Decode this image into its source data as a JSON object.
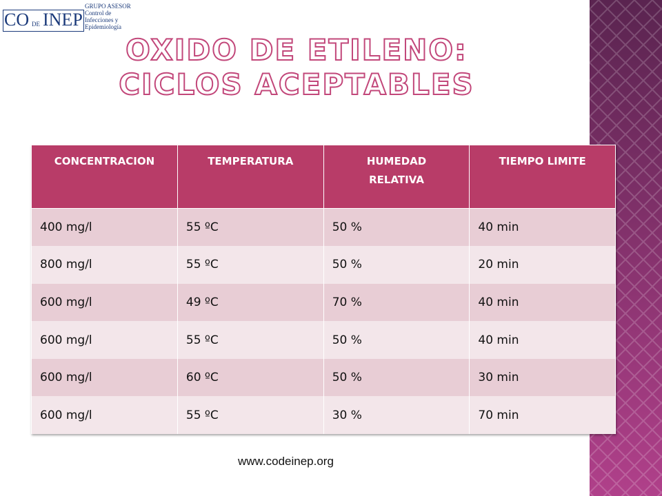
{
  "logo": {
    "co": "CO",
    "de": "DE",
    "inep": "INEP",
    "lines": [
      "GRUPO ASESOR",
      "Control de",
      "Infecciones y",
      "Epidemiología"
    ]
  },
  "title": [
    "OXIDO DE ETILENO:",
    "CICLOS ACEPTABLES"
  ],
  "table": {
    "header": [
      "CONCENTRACION",
      "TEMPERATURA",
      "HUMEDAD RELATIVA",
      "TIEMPO LIMITE"
    ],
    "rows": [
      [
        "400 mg/l",
        "55 ºC",
        "50 %",
        "40 min"
      ],
      [
        "800 mg/l",
        "55 ºC",
        "50 %",
        "20 min"
      ],
      [
        "600 mg/l",
        "49 ºC",
        "70 %",
        "40 min"
      ],
      [
        "600 mg/l",
        "55 ºC",
        "50 %",
        "40 min"
      ],
      [
        "600 mg/l",
        "60 ºC",
        "50 %",
        "30 min"
      ],
      [
        "600 mg/l",
        "55 ºC",
        "30 %",
        "70 min"
      ]
    ]
  },
  "footer": "www.codeinep.org"
}
